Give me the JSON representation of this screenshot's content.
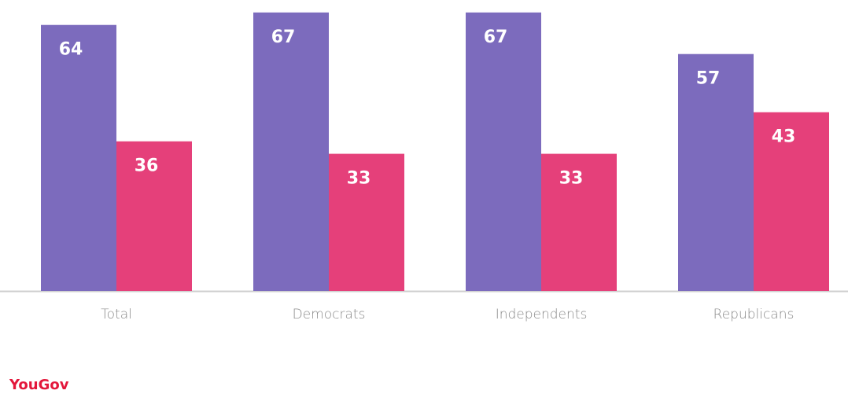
{
  "chart_data": {
    "type": "bar",
    "categories": [
      "Total",
      "Democrats",
      "Independents",
      "Republicans"
    ],
    "series": [
      {
        "color": "#7c6bbd",
        "values": [
          64,
          67,
          67,
          57
        ]
      },
      {
        "color": "#e5407a",
        "values": [
          36,
          33,
          33,
          43
        ]
      }
    ],
    "ylim": [
      0,
      70
    ],
    "logo": "YouGov"
  }
}
